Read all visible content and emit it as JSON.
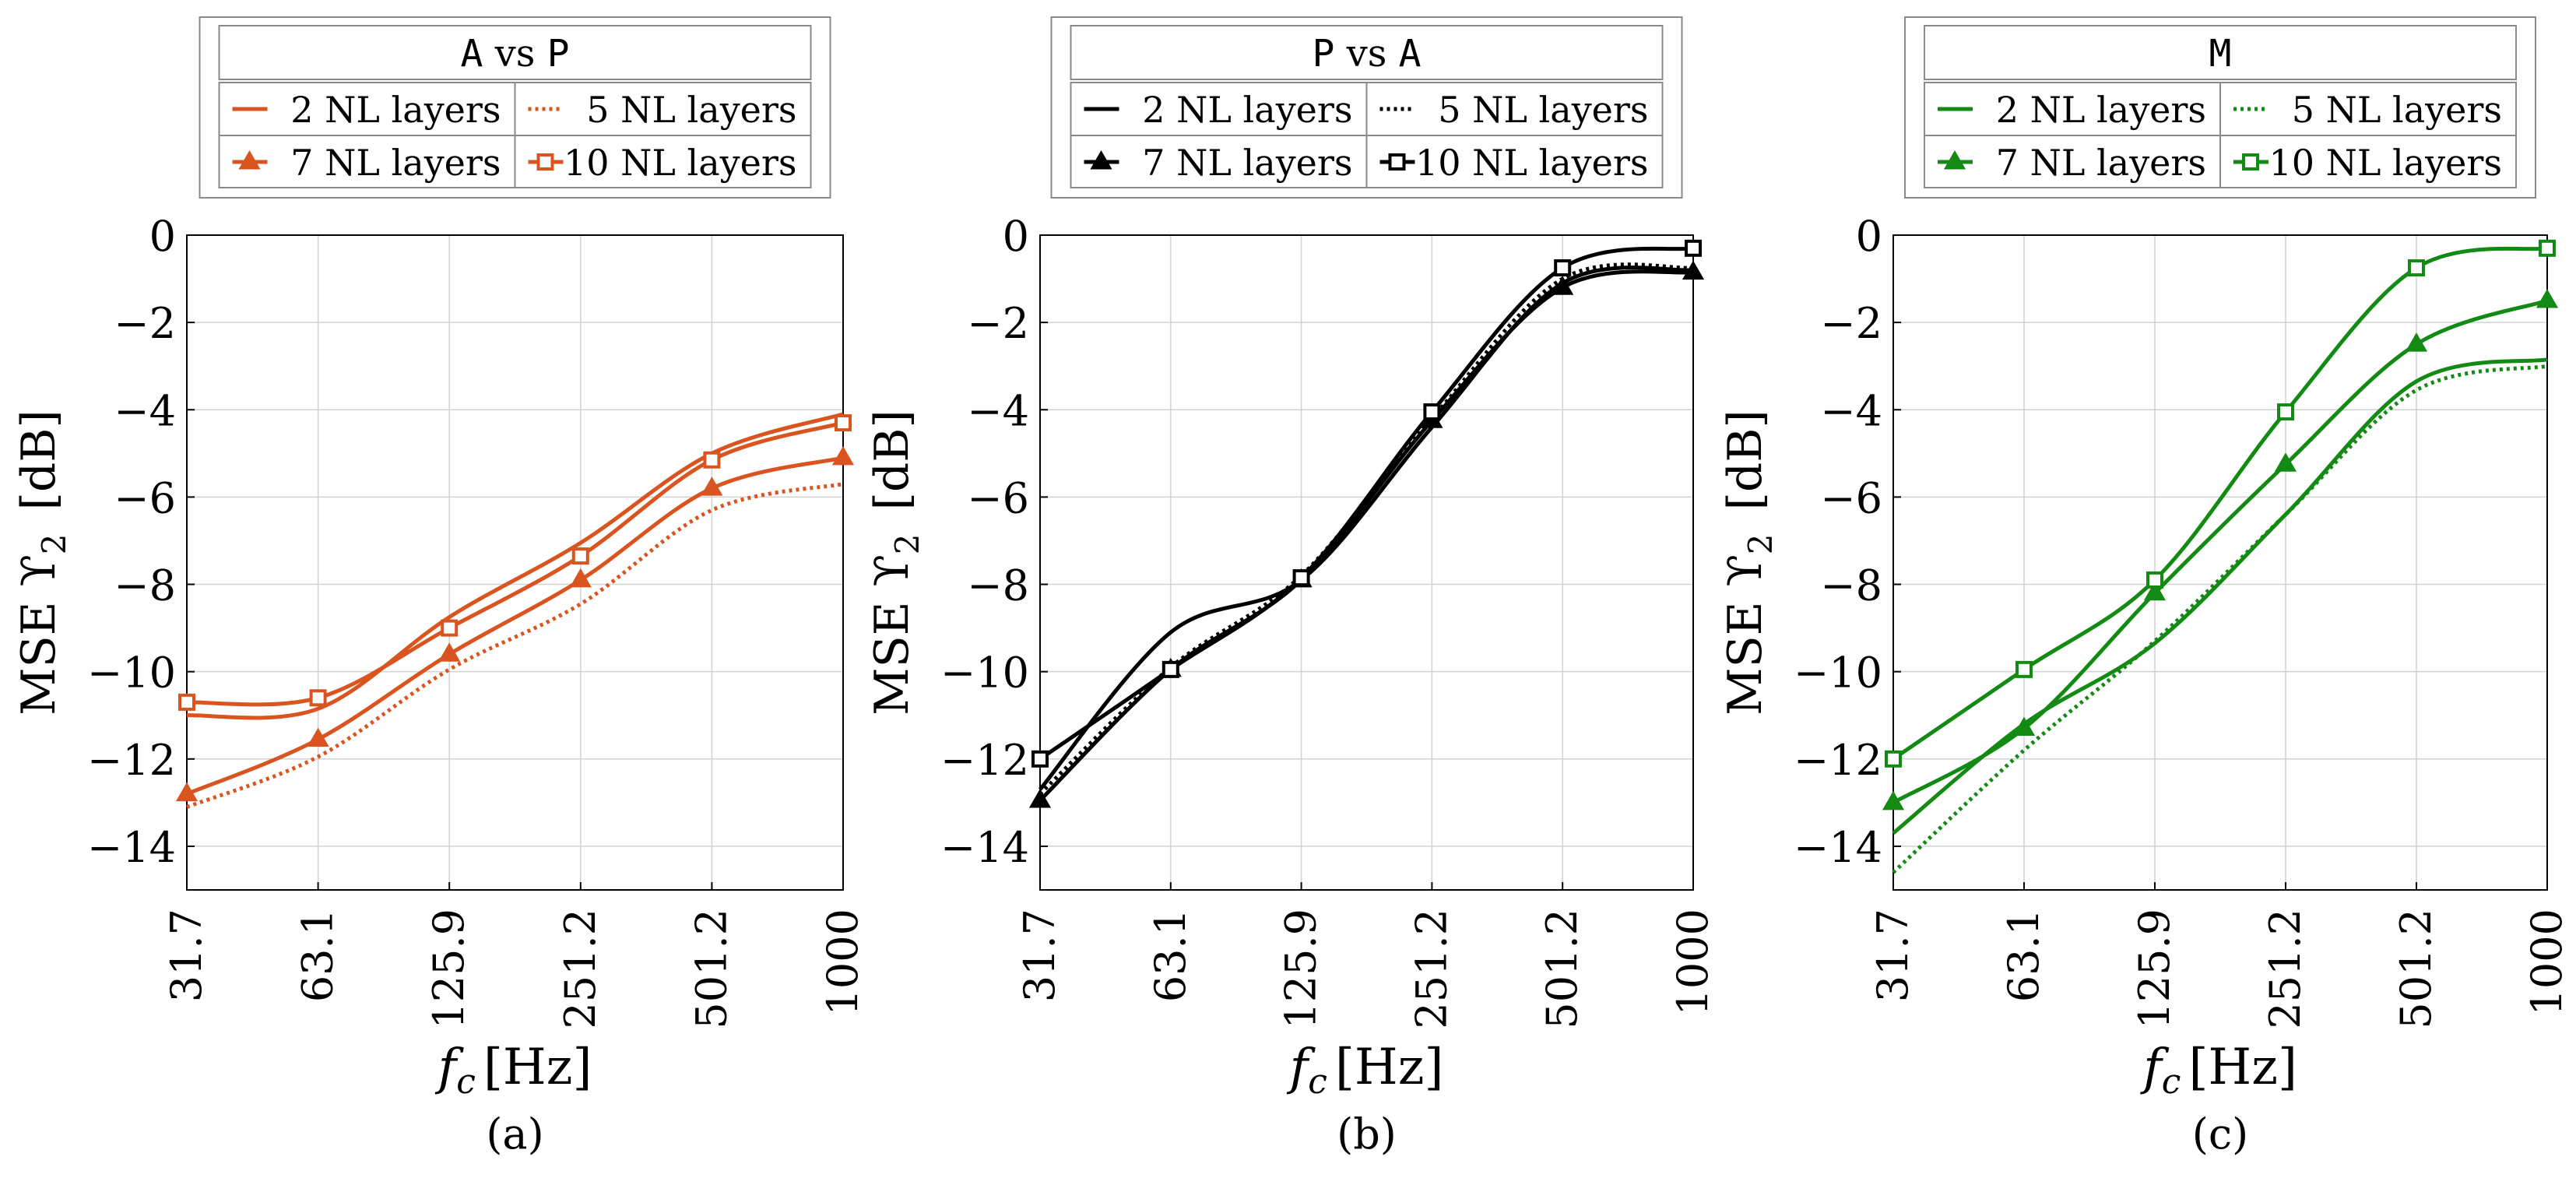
{
  "chart_data": [
    {
      "type": "line",
      "panel_label": "(a)",
      "color": "#d9541e",
      "legend_title": {
        "left": "A",
        "mid": "vs",
        "right": "P"
      },
      "xlabel": {
        "var": "f",
        "sub": "c",
        "unit": "[Hz]"
      },
      "ylabel": {
        "text": "MSE",
        "sym": "ϒ",
        "sub": "2",
        "unit": "[dB]"
      },
      "x_ticks": [
        "31.7",
        "63.1",
        "125.9",
        "251.2",
        "501.2",
        "1000"
      ],
      "y_ticks": [
        "0",
        "−2",
        "−4",
        "−6",
        "−8",
        "−10",
        "−12",
        "−14"
      ],
      "ylim": [
        -15,
        0
      ],
      "grid": true,
      "series": [
        {
          "name": "2 NL layers",
          "style": "solid",
          "marker": "none",
          "values": [
            -11.0,
            -10.85,
            -8.75,
            -7.05,
            -5.0,
            -4.1
          ]
        },
        {
          "name": "5 NL layers",
          "style": "dotted",
          "marker": "none",
          "values": [
            -13.1,
            -11.95,
            -9.95,
            -8.45,
            -6.3,
            -5.7
          ]
        },
        {
          "name": "7 NL layers",
          "style": "solid",
          "marker": "triangle",
          "values": [
            -12.8,
            -11.55,
            -9.6,
            -7.9,
            -5.8,
            -5.1
          ]
        },
        {
          "name": "10 NL layers",
          "style": "solid",
          "marker": "square",
          "values": [
            -10.7,
            -10.6,
            -9.0,
            -7.35,
            -5.15,
            -4.3
          ]
        }
      ]
    },
    {
      "type": "line",
      "panel_label": "(b)",
      "color": "#000000",
      "legend_title": {
        "left": "P",
        "mid": "vs",
        "right": "A"
      },
      "xlabel": {
        "var": "f",
        "sub": "c",
        "unit": "[Hz]"
      },
      "ylabel": {
        "text": "MSE",
        "sym": "ϒ",
        "sub": "2",
        "unit": "[dB]"
      },
      "x_ticks": [
        "31.7",
        "63.1",
        "125.9",
        "251.2",
        "501.2",
        "1000"
      ],
      "y_ticks": [
        "0",
        "−2",
        "−4",
        "−6",
        "−8",
        "−10",
        "−12",
        "−14"
      ],
      "ylim": [
        -15,
        0
      ],
      "grid": true,
      "series": [
        {
          "name": "2 NL layers",
          "style": "solid",
          "marker": "none",
          "values": [
            -12.7,
            -9.1,
            -7.9,
            -4.4,
            -1.1,
            -0.8
          ]
        },
        {
          "name": "5 NL layers",
          "style": "dotted",
          "marker": "none",
          "values": [
            -12.8,
            -9.9,
            -7.8,
            -4.2,
            -1.0,
            -0.75
          ]
        },
        {
          "name": "7 NL layers",
          "style": "solid",
          "marker": "triangle",
          "values": [
            -12.95,
            -9.95,
            -7.9,
            -4.25,
            -1.2,
            -0.85
          ]
        },
        {
          "name": "10 NL layers",
          "style": "solid",
          "marker": "square",
          "values": [
            -12.0,
            -9.95,
            -7.85,
            -4.05,
            -0.75,
            -0.3
          ]
        }
      ]
    },
    {
      "type": "line",
      "panel_label": "(c)",
      "color": "#138a13",
      "legend_title": {
        "left": "M",
        "mid": "",
        "right": ""
      },
      "xlabel": {
        "var": "f",
        "sub": "c",
        "unit": "[Hz]"
      },
      "ylabel": {
        "text": "MSE",
        "sym": "ϒ",
        "sub": "2",
        "unit": "[dB]"
      },
      "x_ticks": [
        "31.7",
        "63.1",
        "125.9",
        "251.2",
        "501.2",
        "1000"
      ],
      "y_ticks": [
        "0",
        "−2",
        "−4",
        "−6",
        "−8",
        "−10",
        "−12",
        "−14"
      ],
      "ylim": [
        -15,
        0
      ],
      "grid": true,
      "series": [
        {
          "name": "2 NL layers",
          "style": "solid",
          "marker": "none",
          "values": [
            -13.7,
            -11.2,
            -9.35,
            -6.4,
            -3.35,
            -2.85
          ]
        },
        {
          "name": "5 NL layers",
          "style": "dotted",
          "marker": "none",
          "values": [
            -14.6,
            -11.8,
            -9.3,
            -6.4,
            -3.55,
            -3.0
          ]
        },
        {
          "name": "7 NL layers",
          "style": "solid",
          "marker": "triangle",
          "values": [
            -13.0,
            -11.3,
            -8.2,
            -5.25,
            -2.5,
            -1.5
          ]
        },
        {
          "name": "10 NL layers",
          "style": "solid",
          "marker": "square",
          "values": [
            -12.0,
            -9.95,
            -7.9,
            -4.05,
            -0.75,
            -0.3
          ]
        }
      ]
    }
  ]
}
